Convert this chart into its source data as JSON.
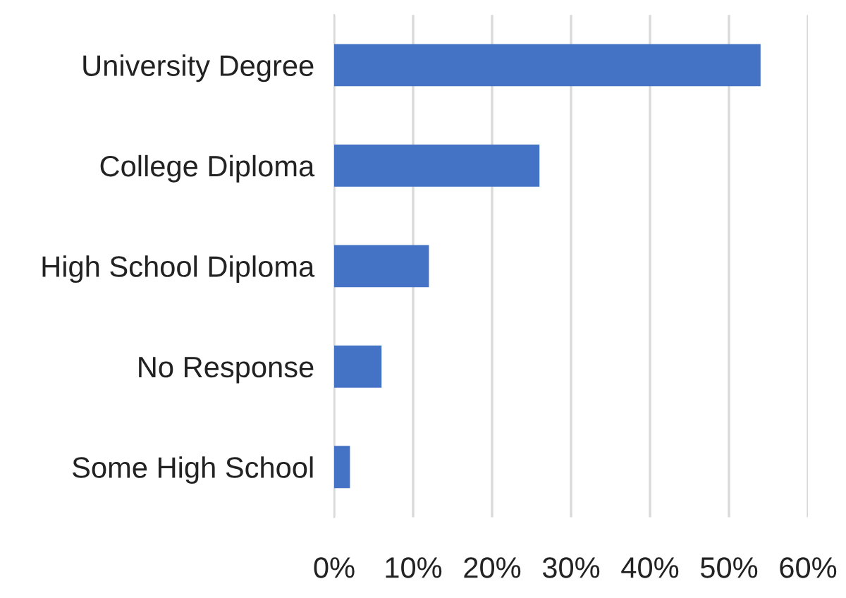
{
  "chart_data": {
    "type": "bar",
    "orientation": "horizontal",
    "categories": [
      "University Degree",
      "College Diploma",
      "High School Diploma",
      "No Response",
      "Some High School"
    ],
    "values": [
      54,
      26,
      12,
      6,
      2
    ],
    "color": "#4472c4",
    "xlim": [
      0,
      60
    ],
    "xticks": [
      {
        "value": 0,
        "label": "0%"
      },
      {
        "value": 10,
        "label": "10%"
      },
      {
        "value": 20,
        "label": "20%"
      },
      {
        "value": 30,
        "label": "30%"
      },
      {
        "value": 40,
        "label": "40%"
      },
      {
        "value": 50,
        "label": "50%"
      },
      {
        "value": 60,
        "label": "60%"
      }
    ],
    "grid": "x"
  }
}
